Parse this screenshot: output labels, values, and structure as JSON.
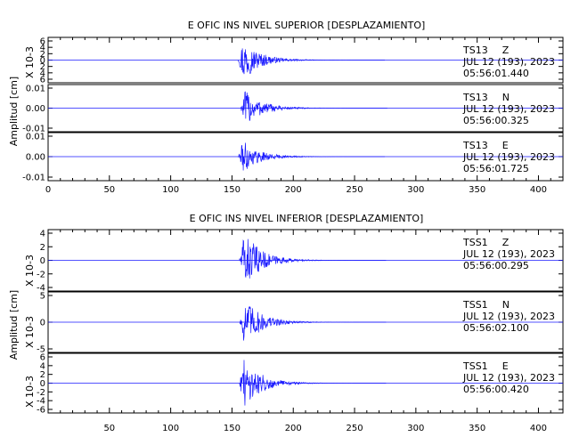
{
  "chart_data": [
    {
      "type": "line",
      "title": "E OFIC INS NIVEL SUPERIOR [DESPLAZAMIENTO]",
      "ylabel": "Amplitud [cm]",
      "xlim": [
        0,
        420
      ],
      "xticks": [
        "0",
        "50",
        "100",
        "150",
        "200",
        "250",
        "300",
        "350",
        "400"
      ],
      "traces": [
        {
          "station": "TS13",
          "component": "Z",
          "date": "JUL 12 (193), 2023",
          "time": "05:56:01.440",
          "scale": "X 10-3",
          "ylim": [
            -7,
            7
          ],
          "yticks": [
            "6",
            "4",
            "2",
            "0",
            "2",
            "4",
            "6"
          ],
          "onset": 155,
          "peak": 6.5
        },
        {
          "station": "TS13",
          "component": "N",
          "date": "JUL 12 (193), 2023",
          "time": "05:56:00.325",
          "scale": "",
          "ylim": [
            -0.015,
            0.015
          ],
          "yticks": [
            "0.01",
            "0.00",
            "-0.01"
          ],
          "onset": 157,
          "peak": 0.012
        },
        {
          "station": "TS13",
          "component": "E",
          "date": "JUL 12 (193), 2023",
          "time": "05:56:01.725",
          "scale": "",
          "ylim": [
            -0.015,
            0.015
          ],
          "yticks": [
            "0.01",
            "0.00",
            "-0.01"
          ],
          "onset": 155,
          "peak": 0.01
        }
      ]
    },
    {
      "type": "line",
      "title": "E OFIC INS NIVEL INFERIOR [DESPLAZAMIENTO]",
      "ylabel": "Amplitud [cm]",
      "xlim": [
        0,
        420
      ],
      "xticks": [
        "50",
        "100",
        "150",
        "200",
        "250",
        "300",
        "350",
        "400"
      ],
      "traces": [
        {
          "station": "TSS1",
          "component": "Z",
          "date": "JUL 12 (193), 2023",
          "time": "05:56:00.295",
          "scale": "X 10-3",
          "ylim": [
            -4,
            4
          ],
          "yticks": [
            "4",
            "2",
            "0",
            "-2",
            "-4"
          ],
          "onset": 156,
          "peak": 3.8
        },
        {
          "station": "TSS1",
          "component": "N",
          "date": "JUL 12 (193), 2023",
          "time": "05:56:02.100",
          "scale": "X 10-3",
          "ylim": [
            -7,
            7
          ],
          "yticks": [
            "5",
            "0",
            "-5"
          ],
          "onset": 156,
          "peak": 6.0
        },
        {
          "station": "TSS1",
          "component": "E",
          "date": "JUL 12 (193), 2023",
          "time": "05:56:00.420",
          "scale": "X 10-3",
          "ylim": [
            -7,
            7
          ],
          "yticks": [
            "6",
            "4",
            "2",
            "0",
            "-2",
            "-4",
            "-6"
          ],
          "onset": 156,
          "peak": 6.0
        }
      ]
    }
  ],
  "colors": {
    "trace": "#1a1aff",
    "axis": "#000000"
  }
}
